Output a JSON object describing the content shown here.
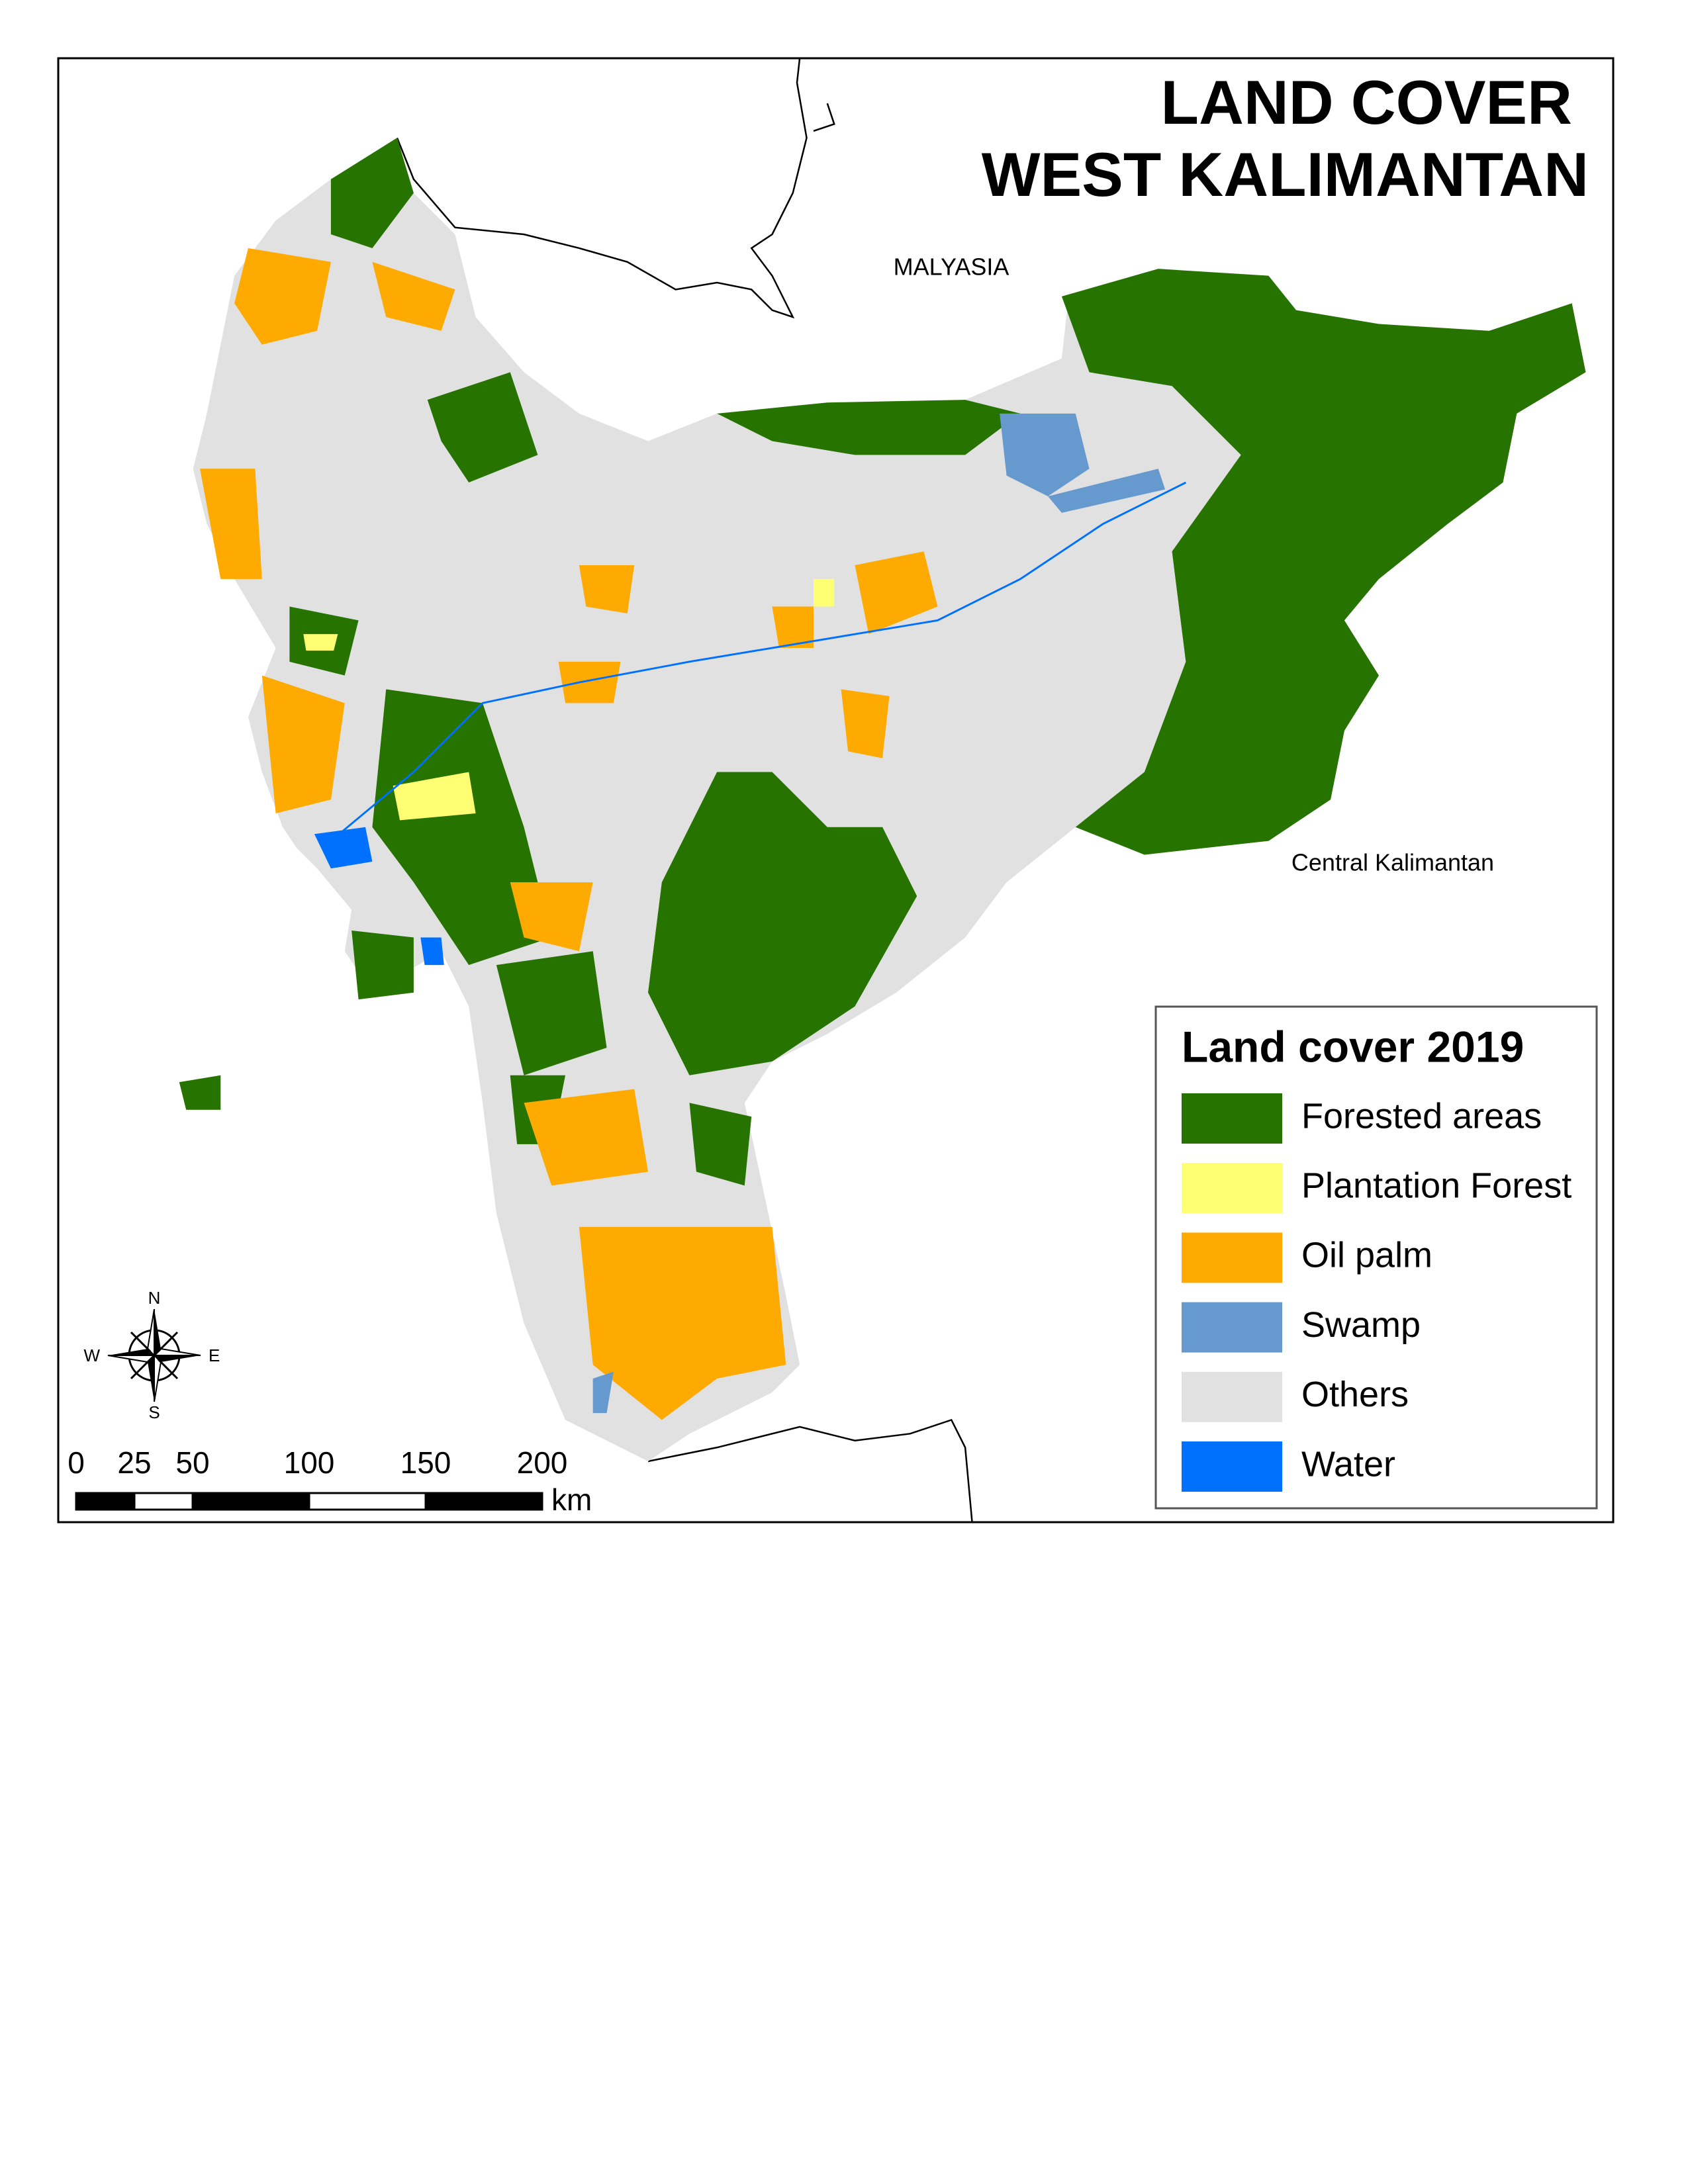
{
  "title": [
    "LAND COVER",
    "WEST KALIMANTAN"
  ],
  "places": {
    "north": "MALYASIA",
    "south": "Central Kalimantan"
  },
  "legend": {
    "title": "Land cover 2019",
    "items": [
      {
        "label": "Forested areas",
        "color": "#267300"
      },
      {
        "label": "Plantation Forest",
        "color": "#ffff73"
      },
      {
        "label": "Oil palm",
        "color": "#ffaa00"
      },
      {
        "label": "Swamp",
        "color": "#6699cd"
      },
      {
        "label": "Others",
        "color": "#e1e1e1"
      },
      {
        "label": "Water",
        "color": "#0070ff"
      }
    ]
  },
  "scale_bar": {
    "ticks": [
      0,
      25,
      50,
      100,
      150,
      200
    ],
    "unit": "km"
  },
  "compass": {
    "n": "N",
    "e": "E",
    "s": "S",
    "w": "W"
  }
}
